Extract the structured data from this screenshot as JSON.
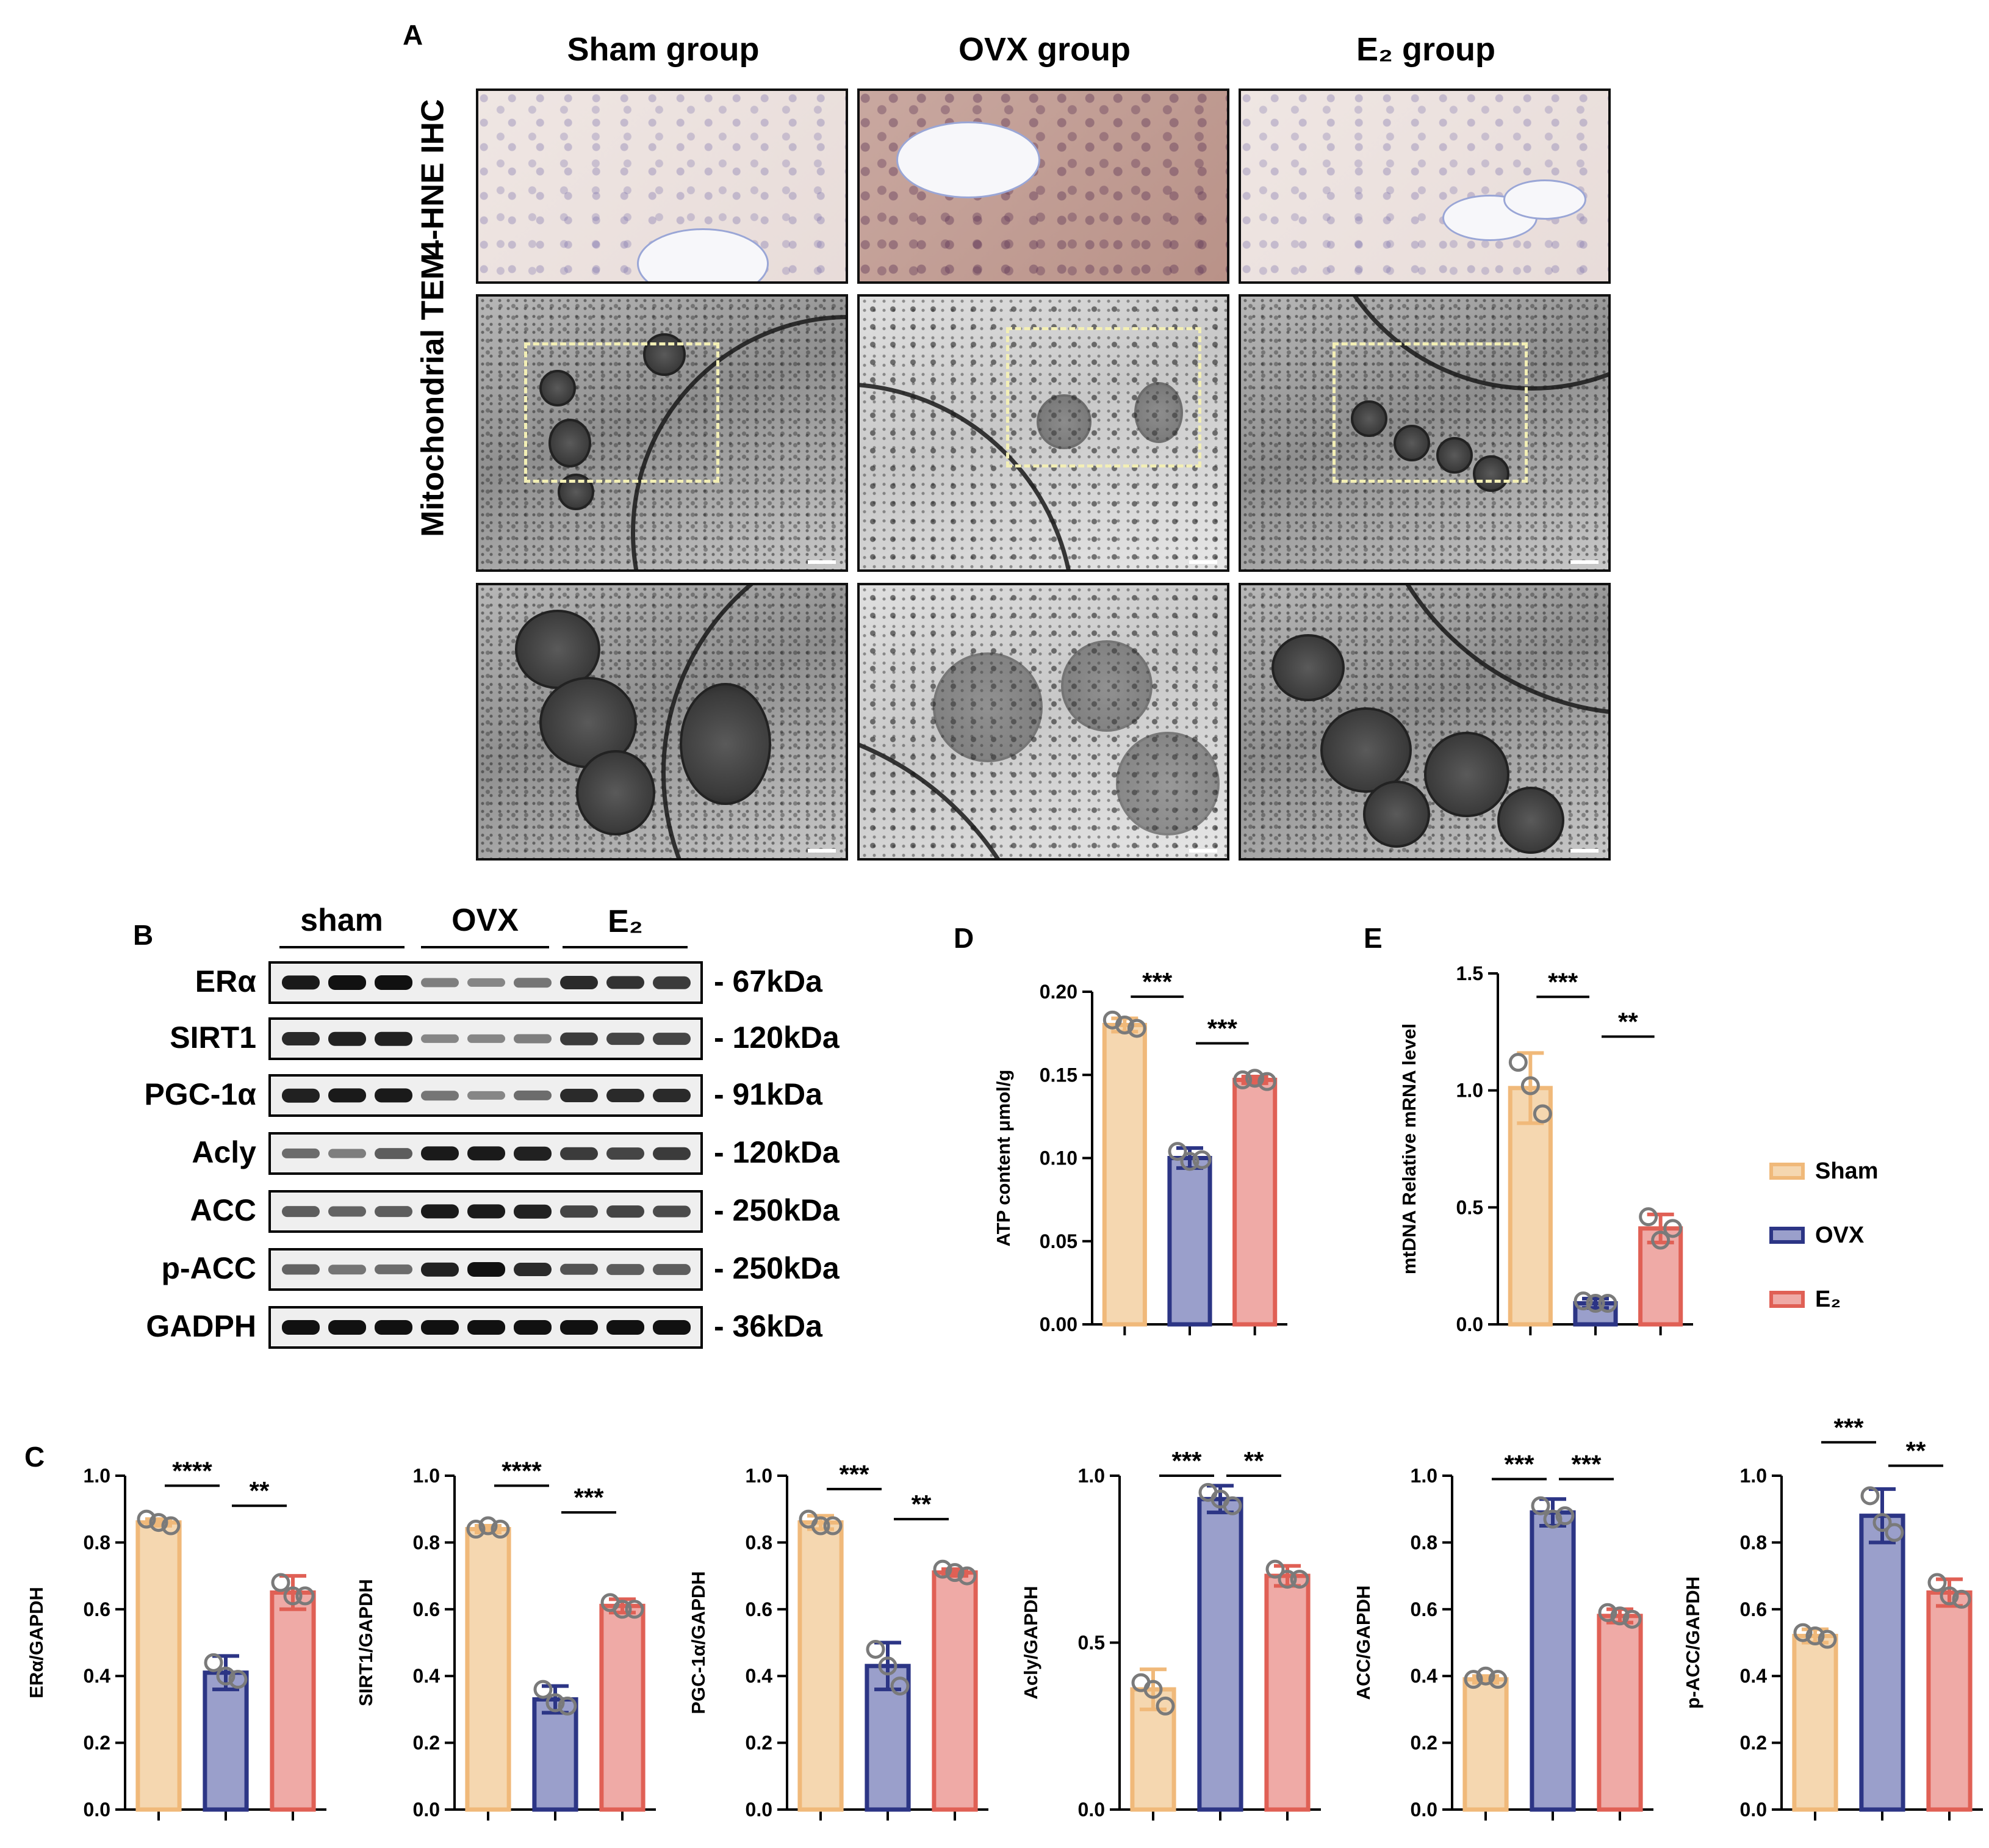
{
  "panel_letters": {
    "A": "A",
    "B": "B",
    "C": "C",
    "D": "D",
    "E": "E"
  },
  "panel_a": {
    "columns": [
      "Sham group",
      "OVX group",
      "E₂ group"
    ],
    "rows": [
      "4-HNE IHC",
      "Mitochondrial TEM"
    ]
  },
  "panel_b": {
    "groups": [
      "sham",
      "OVX",
      "E₂"
    ],
    "blots": [
      {
        "name": "ERα",
        "kda": "- 67kDa",
        "intensity": [
          0.95,
          1.0,
          1.0,
          0.35,
          0.3,
          0.4,
          0.85,
          0.8,
          0.75
        ]
      },
      {
        "name": "SIRT1",
        "kda": "- 120kDa",
        "intensity": [
          0.85,
          0.9,
          0.9,
          0.3,
          0.3,
          0.35,
          0.75,
          0.7,
          0.7
        ]
      },
      {
        "name": "PGC-1α",
        "kda": "- 91kDa",
        "intensity": [
          0.9,
          0.95,
          0.95,
          0.4,
          0.3,
          0.45,
          0.85,
          0.85,
          0.85
        ]
      },
      {
        "name": "Acly",
        "kda": "- 120kDa",
        "intensity": [
          0.45,
          0.35,
          0.55,
          0.95,
          0.95,
          0.9,
          0.75,
          0.7,
          0.75
        ]
      },
      {
        "name": "ACC",
        "kda": "- 250kDa",
        "intensity": [
          0.55,
          0.5,
          0.55,
          0.95,
          0.95,
          0.9,
          0.7,
          0.7,
          0.65
        ]
      },
      {
        "name": "p-ACC",
        "kda": "- 250kDa",
        "intensity": [
          0.5,
          0.4,
          0.45,
          0.9,
          1.0,
          0.85,
          0.6,
          0.55,
          0.55
        ]
      },
      {
        "name": "GADPH",
        "kda": "- 36kDa",
        "intensity": [
          1,
          1,
          1,
          1,
          1,
          1,
          1,
          1,
          1
        ]
      }
    ]
  },
  "colors": {
    "sham_fill": "#f5d7b0",
    "sham_edge": "#f0b97a",
    "ovx_fill": "#9a9fcb",
    "ovx_edge": "#2c3585",
    "e2_fill": "#efaaa6",
    "e2_edge": "#e06055"
  },
  "legend": {
    "items": [
      "Sham",
      "OVX",
      "E₂"
    ]
  },
  "chart_data": [
    {
      "id": "D",
      "type": "bar",
      "ylabel": "ATP content μmol/g",
      "ylim": [
        0,
        0.2
      ],
      "yticks": [
        "0.00",
        "0.05",
        "0.10",
        "0.15",
        "0.20"
      ],
      "values": [
        0.18,
        0.1,
        0.147
      ],
      "errors": [
        0.004,
        0.006,
        0.002
      ],
      "points": [
        [
          0.183,
          0.18,
          0.178
        ],
        [
          0.104,
          0.098,
          0.099
        ],
        [
          0.147,
          0.148,
          0.146
        ]
      ],
      "sig": [
        {
          "from": 0,
          "to": 1,
          "label": "***",
          "y": 0.197
        },
        {
          "from": 1,
          "to": 2,
          "label": "***",
          "y": 0.169
        }
      ]
    },
    {
      "id": "E",
      "type": "bar",
      "ylabel": "mtDNA Relative mRNA level",
      "ylim": [
        0,
        1.5
      ],
      "yticks": [
        "0.0",
        "0.5",
        "1.0",
        "1.5"
      ],
      "values": [
        1.01,
        0.09,
        0.41
      ],
      "errors": [
        0.15,
        0.02,
        0.06
      ],
      "points": [
        [
          1.12,
          1.02,
          0.9
        ],
        [
          0.1,
          0.09,
          0.09
        ],
        [
          0.46,
          0.36,
          0.41
        ]
      ],
      "sig": [
        {
          "from": 0,
          "to": 1,
          "label": "***",
          "y": 1.4
        },
        {
          "from": 1,
          "to": 2,
          "label": "**",
          "y": 1.23
        }
      ]
    },
    {
      "id": "C1",
      "type": "bar",
      "ylabel": "ERα/GAPDH",
      "ylim": [
        0,
        1.0
      ],
      "yticks": [
        "0.0",
        "0.2",
        "0.4",
        "0.6",
        "0.8",
        "1.0"
      ],
      "values": [
        0.86,
        0.41,
        0.65
      ],
      "errors": [
        0.01,
        0.05,
        0.05
      ],
      "points": [
        [
          0.87,
          0.86,
          0.85
        ],
        [
          0.44,
          0.4,
          0.39
        ],
        [
          0.68,
          0.64,
          0.64
        ]
      ],
      "sig": [
        {
          "from": 0,
          "to": 1,
          "label": "****",
          "y": 0.97
        },
        {
          "from": 1,
          "to": 2,
          "label": "**",
          "y": 0.91
        }
      ]
    },
    {
      "id": "C2",
      "type": "bar",
      "ylabel": "SIRT1/GAPDH",
      "ylim": [
        0,
        1.0
      ],
      "yticks": [
        "0.0",
        "0.2",
        "0.4",
        "0.6",
        "0.8",
        "1.0"
      ],
      "values": [
        0.84,
        0.33,
        0.61
      ],
      "errors": [
        0.01,
        0.04,
        0.02
      ],
      "points": [
        [
          0.84,
          0.85,
          0.84
        ],
        [
          0.36,
          0.32,
          0.31
        ],
        [
          0.62,
          0.6,
          0.6
        ]
      ],
      "sig": [
        {
          "from": 0,
          "to": 1,
          "label": "****",
          "y": 0.97
        },
        {
          "from": 1,
          "to": 2,
          "label": "***",
          "y": 0.89
        }
      ]
    },
    {
      "id": "C3",
      "type": "bar",
      "ylabel": "PGC-1α/GAPDH",
      "ylim": [
        0,
        1.0
      ],
      "yticks": [
        "0.0",
        "0.2",
        "0.4",
        "0.6",
        "0.8",
        "1.0"
      ],
      "values": [
        0.86,
        0.43,
        0.71
      ],
      "errors": [
        0.02,
        0.07,
        0.01
      ],
      "points": [
        [
          0.87,
          0.85,
          0.85
        ],
        [
          0.48,
          0.43,
          0.37
        ],
        [
          0.72,
          0.71,
          0.7
        ]
      ],
      "sig": [
        {
          "from": 0,
          "to": 1,
          "label": "***",
          "y": 0.96
        },
        {
          "from": 1,
          "to": 2,
          "label": "**",
          "y": 0.87
        }
      ]
    },
    {
      "id": "C4",
      "type": "bar",
      "ylabel": "Acly/GAPDH",
      "ylim": [
        0,
        1.0
      ],
      "yticks": [
        "0.0",
        "0.5",
        "1.0"
      ],
      "values": [
        0.36,
        0.93,
        0.7
      ],
      "errors": [
        0.06,
        0.04,
        0.03
      ],
      "points": [
        [
          0.38,
          0.36,
          0.31
        ],
        [
          0.95,
          0.93,
          0.91
        ],
        [
          0.72,
          0.69,
          0.69
        ]
      ],
      "sig": [
        {
          "from": 0,
          "to": 1,
          "label": "***",
          "y": 1.0
        },
        {
          "from": 1,
          "to": 2,
          "label": "**",
          "y": 1.0
        }
      ]
    },
    {
      "id": "C5",
      "type": "bar",
      "ylabel": "ACC/GAPDH",
      "ylim": [
        0,
        1.0
      ],
      "yticks": [
        "0.0",
        "0.2",
        "0.4",
        "0.6",
        "0.8",
        "1.0"
      ],
      "values": [
        0.39,
        0.89,
        0.58
      ],
      "errors": [
        0.01,
        0.04,
        0.02
      ],
      "points": [
        [
          0.39,
          0.4,
          0.39
        ],
        [
          0.91,
          0.87,
          0.88
        ],
        [
          0.59,
          0.58,
          0.57
        ]
      ],
      "sig": [
        {
          "from": 0,
          "to": 1,
          "label": "***",
          "y": 0.99
        },
        {
          "from": 1,
          "to": 2,
          "label": "***",
          "y": 0.99
        }
      ]
    },
    {
      "id": "C6",
      "type": "bar",
      "ylabel": "p-ACC/GAPDH",
      "ylim": [
        0,
        1.0
      ],
      "yticks": [
        "0.0",
        "0.2",
        "0.4",
        "0.6",
        "0.8",
        "1.0"
      ],
      "values": [
        0.52,
        0.88,
        0.65
      ],
      "errors": [
        0.02,
        0.08,
        0.04
      ],
      "points": [
        [
          0.53,
          0.52,
          0.51
        ],
        [
          0.94,
          0.86,
          0.83
        ],
        [
          0.68,
          0.64,
          0.63
        ]
      ],
      "sig": [
        {
          "from": 0,
          "to": 1,
          "label": "***",
          "y": 1.1
        },
        {
          "from": 1,
          "to": 2,
          "label": "**",
          "y": 1.03
        }
      ]
    }
  ]
}
